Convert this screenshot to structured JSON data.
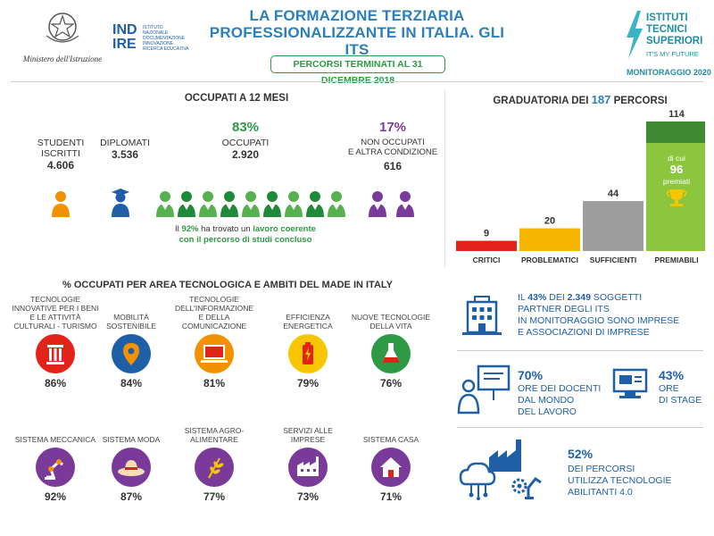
{
  "header": {
    "ministry_logo_text": "Ministero dell'Istruzione",
    "indire_logo": [
      "IND",
      "IRE"
    ],
    "indire_subtitle": [
      "ISTITUTO",
      "NAZIONALE",
      "DOCUMENTAZIONE",
      "INNOVAZIONE",
      "RICERCA EDUCATIVA"
    ],
    "title_line1": "LA FORMAZIONE TERZIARIA",
    "title_line2": "PROFESSIONALIZZANTE IN ITALIA. GLI ITS",
    "subtitle_badge": "PERCORSI TERMINATI AL 31 DICEMBRE 2018",
    "its_logo": [
      "ISTITUTI",
      "TECNICI",
      "SUPERIORI"
    ],
    "its_tagline": "IT'S MY FUTURE",
    "monitoring": "MONITORAGGIO 2020",
    "colors": {
      "teal": "#1b8fa3",
      "blue": "#2c7fb8",
      "green": "#2f9a45",
      "purple": "#7a3a9a"
    }
  },
  "occupati": {
    "section_title": "OCCUPATI A 12 MESI",
    "studenti_label": [
      "STUDENTI",
      "ISCRITTI"
    ],
    "studenti_value": "4.606",
    "diplomati_label": "DIPLOMATI",
    "diplomati_value": "3.536",
    "occupati_pct": "83%",
    "occupati_label": "OCCUPATI",
    "occupati_value": "2.920",
    "non_occupati_pct": "17%",
    "non_occupati_label": [
      "NON OCCUPATI",
      "E ALTRA CONDIZIONE"
    ],
    "non_occupati_value": "616",
    "coerente_line1_a": "Il ",
    "coerente_pct": "92%",
    "coerente_line1_b": " ha trovato un ",
    "coerente_line1_c": "lavoro coerente",
    "coerente_line2": "con il percorso di studi concluso",
    "icons": {
      "student": "person-icon",
      "graduate": "graduate-icon",
      "employed": "person-icon",
      "not_employed": "person-icon"
    },
    "employed_icon_count": 9,
    "not_employed_icon_count": 2
  },
  "chart_data": {
    "type": "bar",
    "title_a": "GRADUATORIA DEI ",
    "title_num": "187",
    "title_b": " PERCORSI",
    "categories": [
      "CRITICI",
      "PROBLEMATICI",
      "SUFFICIENTI",
      "PREMIABILI"
    ],
    "values": [
      9,
      20,
      44,
      114
    ],
    "colors": [
      "#e2231a",
      "#f7b500",
      "#9e9e9e",
      "#6aae3e"
    ],
    "premiati": {
      "label_a": "di cui",
      "value": 96,
      "label_b": "premiati",
      "color": "#8cc63f",
      "top_color": "#3f8a32"
    },
    "ylim": [
      0,
      114
    ]
  },
  "areas": {
    "section_title": "% OCCUPATI PER AREA TECNOLOGICA E AMBITI DEL MADE IN ITALY",
    "items": [
      {
        "label": "TECNOLOGIE INNOVATIVE PER I BENI E LE ATTIVITÀ CULTURALI - TURISMO",
        "pct": "86%",
        "icon": "column-icon",
        "color": "#e2231a"
      },
      {
        "label": "MOBILITÀ SOSTENIBILE",
        "pct": "84%",
        "icon": "location-pin-icon",
        "color": "#1e5fa8"
      },
      {
        "label": "TECNOLOGIE DELL'INFORMAZIONE E DELLA COMUNICAZIONE",
        "pct": "81%",
        "icon": "laptop-icon",
        "color": "#f39200"
      },
      {
        "label": "EFFICIENZA ENERGETICA",
        "pct": "79%",
        "icon": "battery-icon",
        "color": "#f7c600"
      },
      {
        "label": "NUOVE TECNOLOGIE DELLA VITA",
        "pct": "76%",
        "icon": "flask-icon",
        "color": "#2f9a45"
      },
      {
        "label": "SISTEMA MECCANICA",
        "pct": "92%",
        "icon": "robot-arm-icon",
        "color": "#7a3a9a"
      },
      {
        "label": "SISTEMA MODA",
        "pct": "87%",
        "icon": "hat-icon",
        "color": "#7a3a9a"
      },
      {
        "label": "SISTEMA AGRO-ALIMENTARE",
        "pct": "77%",
        "icon": "wheat-icon",
        "color": "#7a3a9a"
      },
      {
        "label": "SERVIZI ALLE IMPRESE",
        "pct": "73%",
        "icon": "factory-icon",
        "color": "#7a3a9a"
      },
      {
        "label": "SISTEMA CASA",
        "pct": "71%",
        "icon": "house-icon",
        "color": "#7a3a9a"
      }
    ]
  },
  "stats": {
    "partner_a": "IL ",
    "partner_pct": "43%",
    "partner_b": " DEI ",
    "partner_num": "2.349",
    "partner_c": " SOGGETTI",
    "partner_lines": [
      "PARTNER DEGLI ITS",
      "IN MONITORAGGIO SONO IMPRESE",
      "E ASSOCIAZIONI DI IMPRESE"
    ],
    "docenti_pct": "70%",
    "docenti_lines": [
      "ORE DEI DOCENTI",
      "DAL MONDO",
      "DEL LAVORO"
    ],
    "stage_pct": "43%",
    "stage_lines": [
      "ORE",
      "DI STAGE"
    ],
    "tech_pct": "52%",
    "tech_lines": [
      "DEI PERCORSI",
      "UTILIZZA TECNOLOGIE",
      "ABILITANTI 4.0"
    ],
    "icons": [
      "building-icon",
      "teacher-icon",
      "monitor-icon",
      "cloud-factory-icon"
    ]
  }
}
